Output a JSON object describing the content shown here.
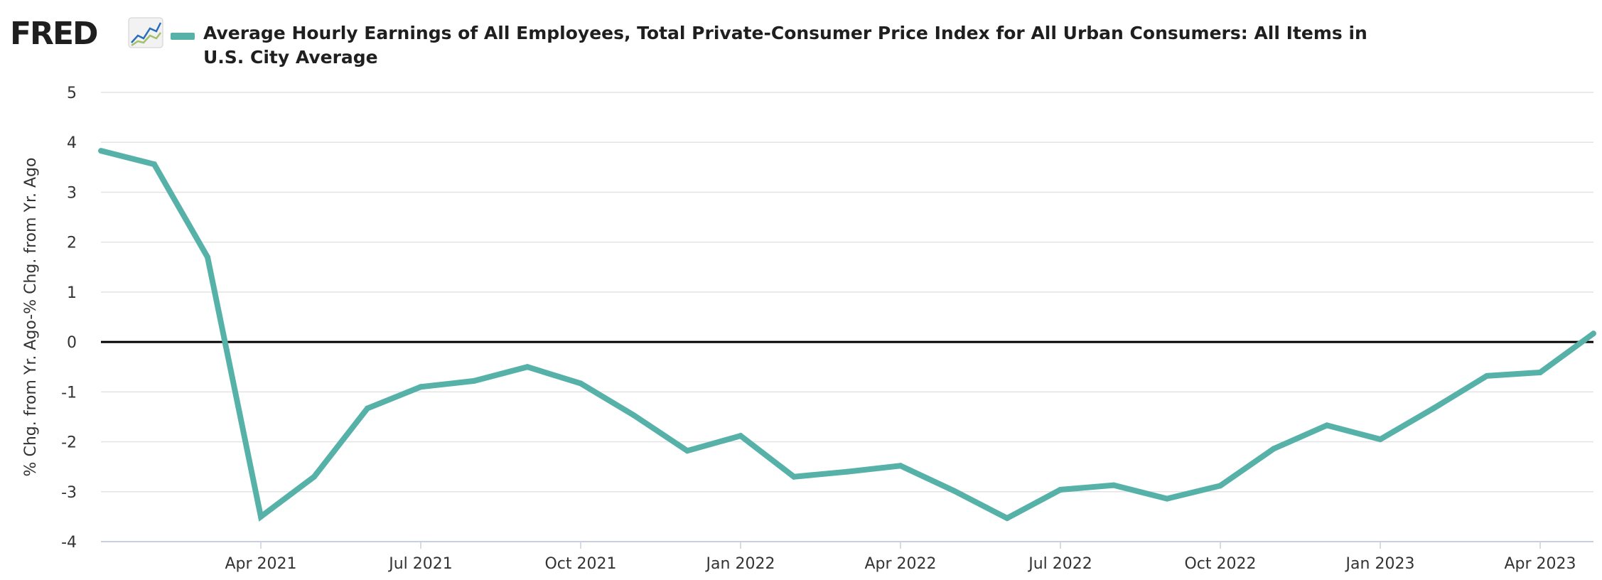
{
  "header": {
    "logo_text": "FRED",
    "legend_label": "Average Hourly Earnings of All Employees, Total Private-Consumer Price Index for All Urban Consumers: All Items in U.S. City Average"
  },
  "colors": {
    "series": "#56b2a8",
    "zero_line": "#000000",
    "grid": "#e3e3e3"
  },
  "chart_data": {
    "type": "line",
    "title": "",
    "xlabel": "",
    "ylabel": "% Chg. from Yr. Ago-% Chg. from Yr. Ago",
    "ylim": [
      -4,
      5
    ],
    "xlim": [
      "2021-01",
      "2023-05"
    ],
    "grid": true,
    "yticks": [
      "-4",
      "-3",
      "-2",
      "-1",
      "0",
      "1",
      "2",
      "3",
      "4",
      "5"
    ],
    "xticks": [
      {
        "date": "2021-04",
        "label": "Apr 2021"
      },
      {
        "date": "2021-07",
        "label": "Jul 2021"
      },
      {
        "date": "2021-10",
        "label": "Oct 2021"
      },
      {
        "date": "2022-01",
        "label": "Jan 2022"
      },
      {
        "date": "2022-04",
        "label": "Apr 2022"
      },
      {
        "date": "2022-07",
        "label": "Jul 2022"
      },
      {
        "date": "2022-10",
        "label": "Oct 2022"
      },
      {
        "date": "2023-01",
        "label": "Jan 2023"
      },
      {
        "date": "2023-04",
        "label": "Apr 2023"
      }
    ],
    "series": [
      {
        "name": "Average Hourly Earnings of All Employees, Total Private-Consumer Price Index for All Urban Consumers: All Items in U.S. City Average",
        "x": [
          "2021-01",
          "2021-02",
          "2021-03",
          "2021-04",
          "2021-05",
          "2021-06",
          "2021-07",
          "2021-08",
          "2021-09",
          "2021-10",
          "2021-11",
          "2021-12",
          "2022-01",
          "2022-02",
          "2022-03",
          "2022-04",
          "2022-05",
          "2022-06",
          "2022-07",
          "2022-08",
          "2022-09",
          "2022-10",
          "2022-11",
          "2022-12",
          "2023-01",
          "2023-02",
          "2023-03",
          "2023-04",
          "2023-05"
        ],
        "values": [
          3.83,
          3.56,
          1.7,
          -3.5,
          -2.7,
          -1.33,
          -0.9,
          -0.78,
          -0.5,
          -0.83,
          -1.47,
          -2.18,
          -1.88,
          -2.7,
          -2.6,
          -2.48,
          -2.98,
          -3.53,
          -2.96,
          -2.87,
          -3.14,
          -2.88,
          -2.14,
          -1.67,
          -1.95,
          -1.33,
          -0.68,
          -0.61,
          0.17
        ]
      }
    ]
  }
}
